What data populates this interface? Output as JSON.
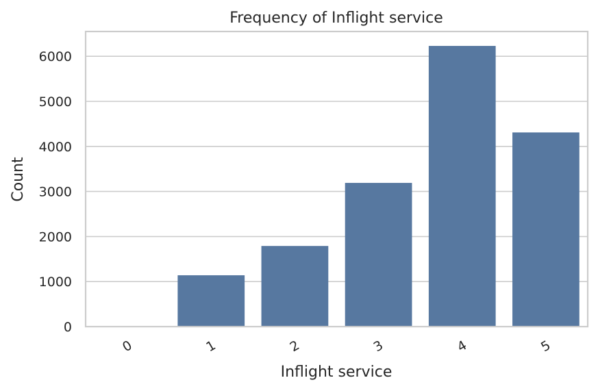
{
  "chart_data": {
    "type": "bar",
    "title": "Frequency of Inflight service",
    "xlabel": "Inflight service",
    "ylabel": "Count",
    "categories": [
      "0",
      "1",
      "2",
      "3",
      "4",
      "5"
    ],
    "values": [
      3,
      1140,
      1790,
      3190,
      6230,
      4310
    ],
    "ylim": [
      0,
      6550
    ],
    "yticks": [
      0,
      1000,
      2000,
      3000,
      4000,
      5000,
      6000
    ],
    "grid": true,
    "bar_color": "#5778a0",
    "xtick_rotation_deg": -30
  }
}
